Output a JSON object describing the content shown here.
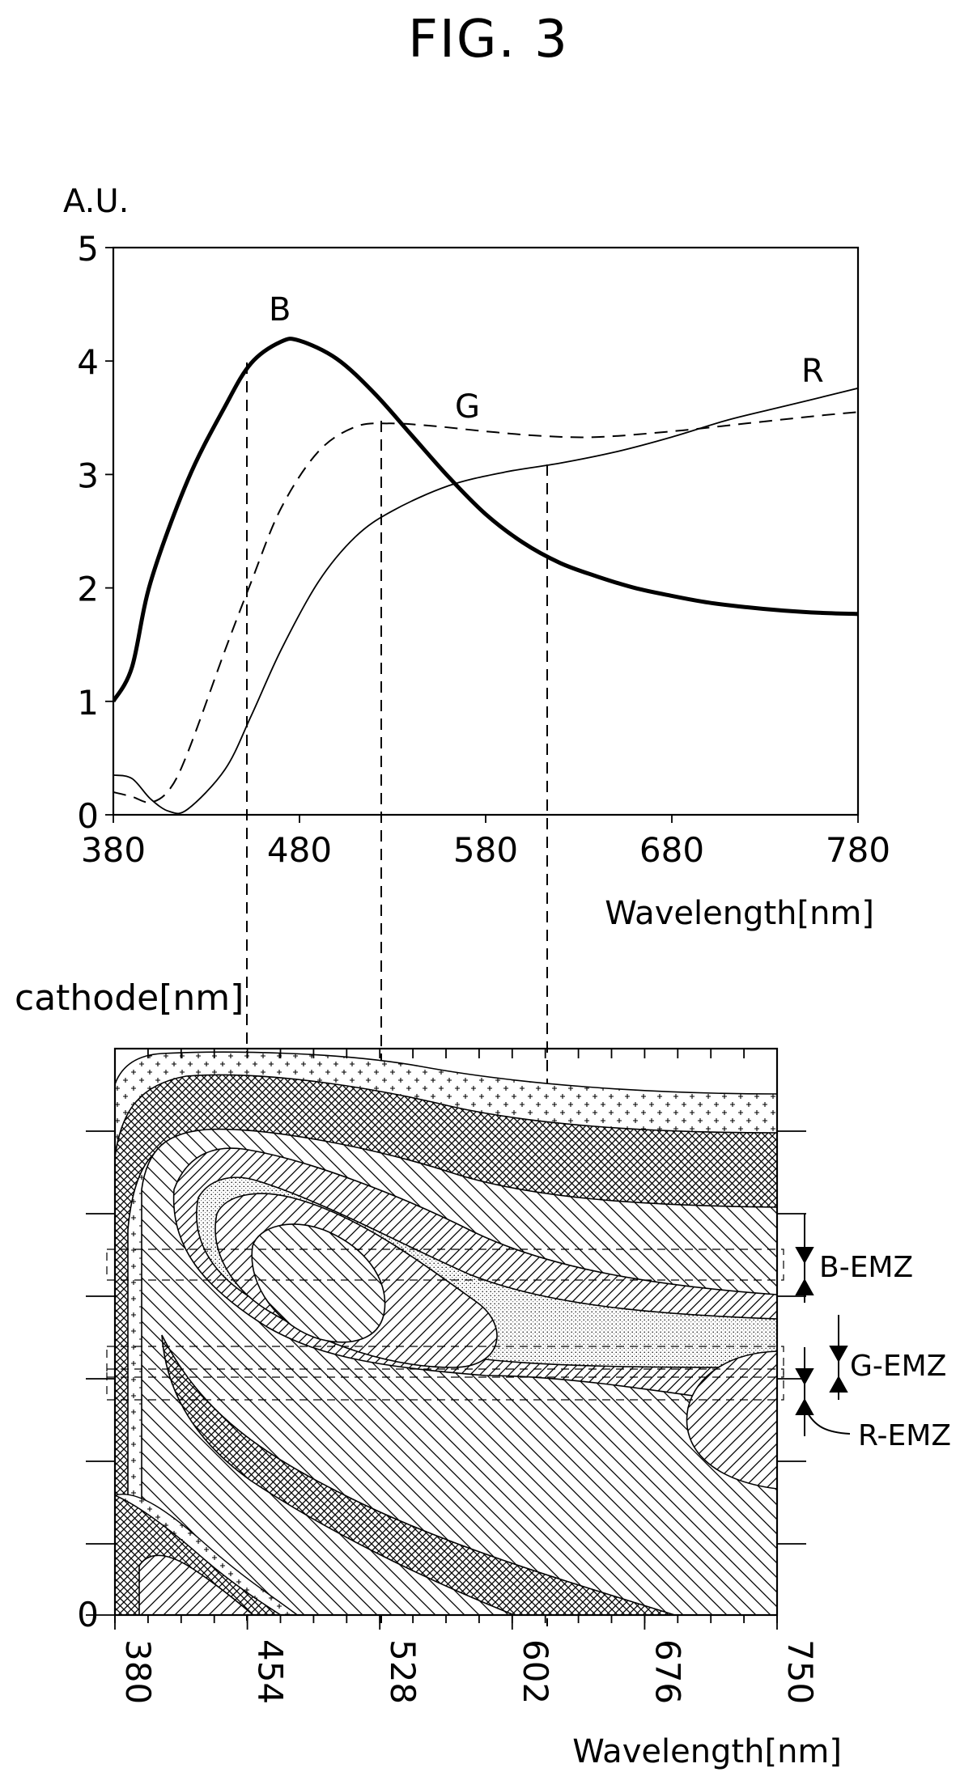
{
  "figure": {
    "title": "FIG. 3"
  },
  "chart_data": [
    {
      "type": "line",
      "ylabel": "A.U.",
      "xlabel": "Wavelength[nm]",
      "xlim": [
        380,
        780
      ],
      "ylim": [
        0,
        5
      ],
      "x_ticks": [
        "380",
        "480",
        "580",
        "680",
        "780"
      ],
      "y_ticks": [
        "0",
        "1",
        "2",
        "3",
        "4",
        "5"
      ],
      "series": [
        {
          "name": "B",
          "style": "bold-solid",
          "x": [
            380,
            390,
            400,
            420,
            440,
            454,
            470,
            480,
            500,
            520,
            540,
            560,
            580,
            600,
            620,
            640,
            660,
            680,
            700,
            720,
            740,
            760,
            780
          ],
          "y": [
            1.0,
            1.3,
            2.05,
            2.95,
            3.6,
            3.98,
            4.17,
            4.18,
            4.02,
            3.72,
            3.35,
            2.98,
            2.65,
            2.4,
            2.22,
            2.1,
            2.0,
            1.93,
            1.87,
            1.83,
            1.8,
            1.78,
            1.77
          ]
        },
        {
          "name": "G",
          "style": "dashed",
          "x": [
            380,
            390,
            400,
            410,
            420,
            440,
            454,
            470,
            490,
            510,
            528,
            550,
            580,
            610,
            640,
            680,
            720,
            760,
            780
          ],
          "y": [
            0.2,
            0.16,
            0.11,
            0.22,
            0.55,
            1.45,
            2.05,
            2.7,
            3.2,
            3.42,
            3.45,
            3.43,
            3.38,
            3.34,
            3.33,
            3.38,
            3.45,
            3.52,
            3.55
          ]
        },
        {
          "name": "R",
          "style": "thin-solid",
          "x": [
            380,
            390,
            400,
            410,
            420,
            440,
            454,
            470,
            490,
            510,
            530,
            560,
            590,
            620,
            650,
            680,
            710,
            740,
            760,
            780
          ],
          "y": [
            0.35,
            0.32,
            0.14,
            0.03,
            0.05,
            0.4,
            0.87,
            1.45,
            2.05,
            2.45,
            2.68,
            2.9,
            3.02,
            3.1,
            3.2,
            3.33,
            3.48,
            3.6,
            3.68,
            3.76
          ]
        }
      ],
      "guide_lines_x": [
        452,
        524,
        612
      ]
    },
    {
      "type": "heatmap",
      "ylabel": "cathode[nm]",
      "xlabel": "Wavelength[nm]",
      "xlim": [
        380,
        750
      ],
      "x_ticks": [
        "380",
        "454",
        "528",
        "602",
        "676",
        "750"
      ],
      "y_ticks": [
        "0"
      ],
      "guide_lines_x": [
        454,
        528,
        620
      ],
      "zones": [
        "B-EMZ",
        "G-EMZ",
        "R-EMZ"
      ]
    }
  ]
}
